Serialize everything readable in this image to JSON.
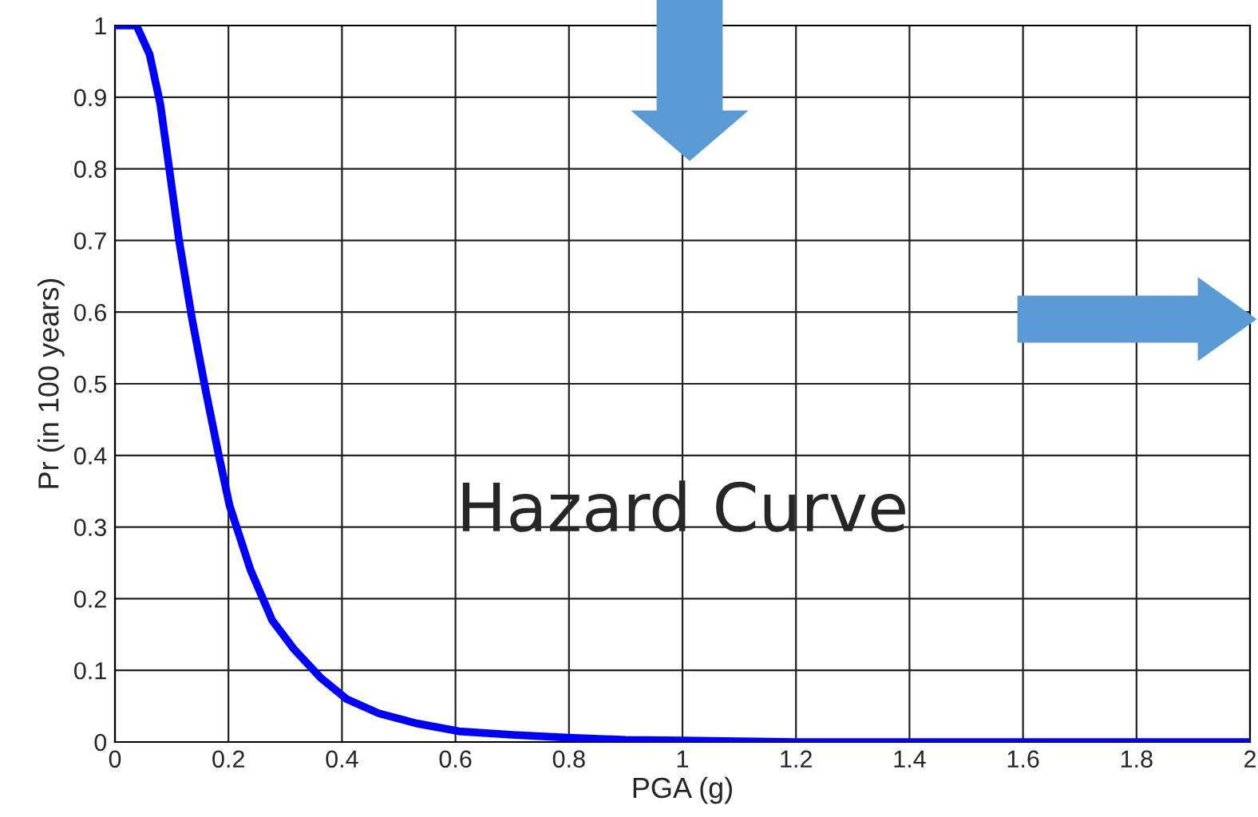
{
  "chart_data": {
    "type": "line",
    "xlabel": "PGA (g)",
    "ylabel": "Pr (in 100 years)",
    "annotations": [
      "Hazard Curve"
    ],
    "series": [
      {
        "color": "#0000ff",
        "x": [
          0,
          0.038,
          0.061,
          0.08,
          0.094,
          0.113,
          0.136,
          0.16,
          0.183,
          0.202,
          0.239,
          0.277,
          0.315,
          0.362,
          0.408,
          0.465,
          0.531,
          0.606,
          0.7,
          0.8,
          0.9,
          1.0,
          1.2,
          1.6,
          2.0
        ],
        "values": [
          1,
          1,
          0.96,
          0.89,
          0.81,
          0.7,
          0.59,
          0.49,
          0.4,
          0.33,
          0.24,
          0.17,
          0.13,
          0.09,
          0.06,
          0.04,
          0.026,
          0.015,
          0.01,
          0.006,
          0.003,
          0.002,
          0,
          0,
          0
        ]
      }
    ],
    "xlim": [
      0,
      2
    ],
    "xticks": [
      0,
      0.2,
      0.4,
      0.6,
      0.8,
      1,
      1.2,
      1.4,
      1.6,
      1.8,
      2
    ],
    "ylim": [
      0,
      1
    ],
    "yticks": [
      0,
      0.1,
      0.2,
      0.3,
      0.4,
      0.5,
      0.6,
      0.7,
      0.8,
      0.9,
      1
    ],
    "grid": true,
    "marker": "none",
    "line_style": "solid"
  }
}
